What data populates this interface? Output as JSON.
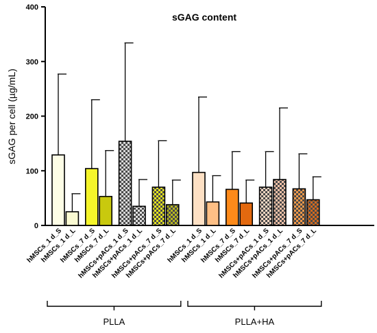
{
  "chart_data": {
    "type": "bar",
    "title": "sGAG content",
    "ylabel": "sGAG per cell (µg/mL)",
    "ylim": [
      0,
      400
    ],
    "yticks": [
      0,
      100,
      200,
      300,
      400
    ],
    "grid": false,
    "categories": [
      "hMSCs_1 d_S",
      "hMSCs_1 d_L",
      "hMSCs_7 d_S",
      "hMSCs_7 d_L",
      "hMSCs+pACs_1 d_S",
      "hMSCs+pACs_1 d_L",
      "hMSCs+pACs_7 d_S",
      "hMSCs+pACs_7 d_L",
      "hMSCs_1 d_S",
      "hMSCs_1 d_L",
      "hMSCs_7 d_S",
      "hMSCs_7 d_L",
      "hMSCs+pACs_1 d_S",
      "hMSCs+pACs_1 d_L",
      "hMSCs+pACs_7 d_S",
      "hMSCs+pACs_7 d_L"
    ],
    "values": [
      129,
      25,
      104,
      53,
      154,
      35,
      70,
      38,
      97,
      43,
      66,
      41,
      70,
      84,
      67,
      47
    ],
    "error_upper": [
      277,
      58,
      230,
      137,
      334,
      84,
      155,
      83,
      235,
      91,
      135,
      83,
      135,
      215,
      131,
      89
    ],
    "colors": [
      "#fdfde6",
      "#fafad2",
      "#f5f52a",
      "#c9c90e",
      "#d8d8d8",
      "#e0e0e0",
      "#e6e61e",
      "#b8b820",
      "#fde0c4",
      "#fdbf85",
      "#fd8a1a",
      "#e3690f",
      "#f7d9c4",
      "#f2c2a8",
      "#f59a4a",
      "#d46a1e"
    ],
    "patterned": [
      false,
      false,
      false,
      false,
      true,
      true,
      true,
      true,
      false,
      false,
      false,
      false,
      true,
      true,
      true,
      true
    ],
    "groups": [
      {
        "label": "PLLA",
        "from": 0,
        "to": 7
      },
      {
        "label": "PLLA+HA",
        "from": 8,
        "to": 15
      }
    ]
  }
}
